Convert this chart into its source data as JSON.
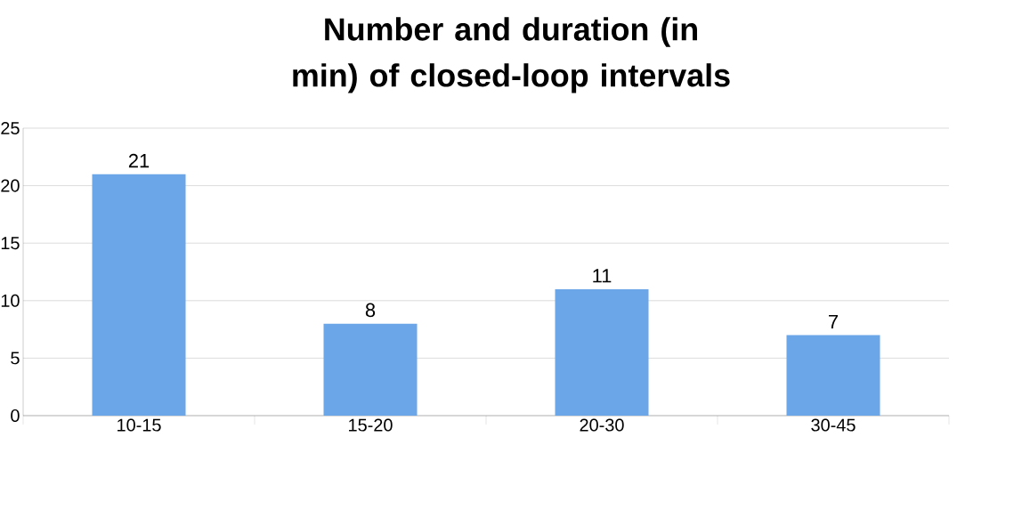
{
  "chart_data": {
    "type": "bar",
    "title": "Number and duration (in min) of closed-loop intervals",
    "categories": [
      "10-15",
      "15-20",
      "20-30",
      "30-45"
    ],
    "values": [
      21,
      8,
      11,
      7
    ],
    "color": "#6aa6e8",
    "ylim": [
      0,
      25
    ],
    "yticks": [
      0,
      5,
      10,
      15,
      20,
      25
    ],
    "grid": "y",
    "data_labels": true
  }
}
